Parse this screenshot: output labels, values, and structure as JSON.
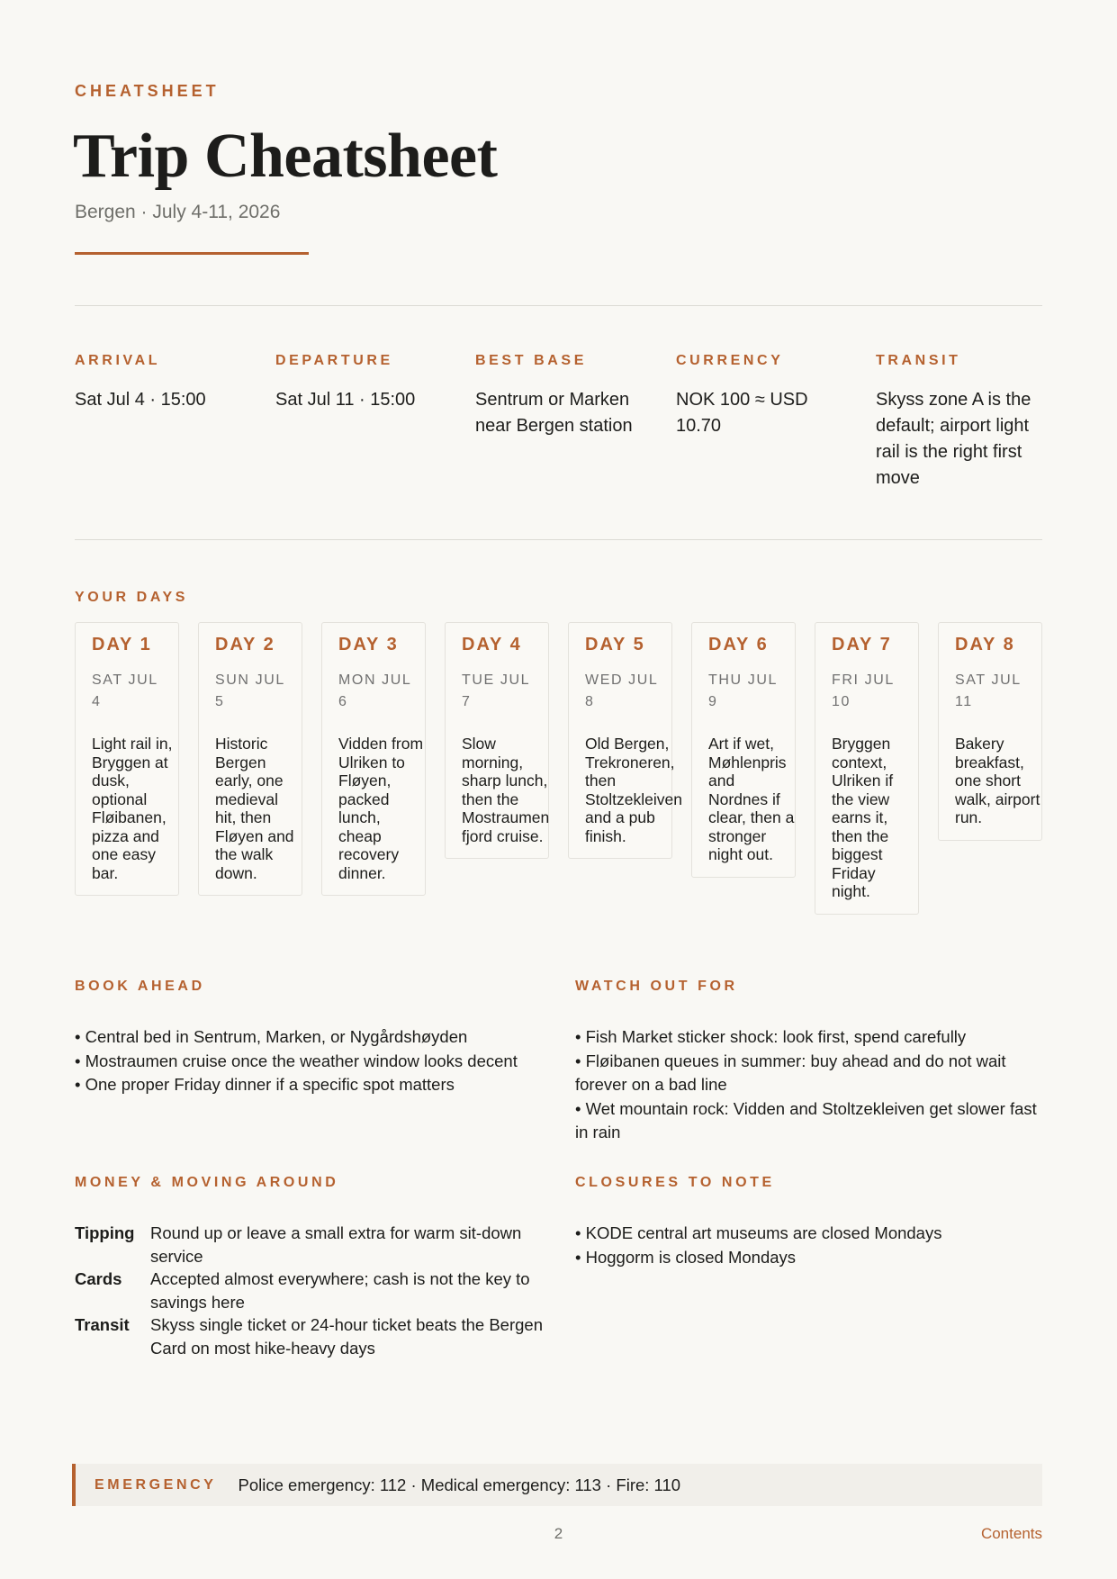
{
  "header": {
    "eyebrow": "CHEATSHEET",
    "title": "Trip Cheatsheet",
    "subtitle": "Bergen · July 4-11, 2026"
  },
  "info": [
    {
      "label": "ARRIVAL",
      "value": "Sat Jul 4 · 15:00"
    },
    {
      "label": "DEPARTURE",
      "value": "Sat Jul 11 · 15:00"
    },
    {
      "label": "BEST BASE",
      "value": "Sentrum or Marken near Bergen station"
    },
    {
      "label": "CURRENCY",
      "value": "NOK 100 ≈ USD 10.70"
    },
    {
      "label": "TRANSIT",
      "value": "Skyss zone A is the default; airport light rail is the right first move"
    }
  ],
  "days": {
    "label": "YOUR DAYS",
    "items": [
      {
        "day": "DAY 1",
        "date": "SAT JUL 4",
        "text": "Light rail in, Bryggen at dusk, optional Fløibanen, pizza and one easy bar."
      },
      {
        "day": "DAY 2",
        "date": "SUN JUL 5",
        "text": "Historic Bergen early, one medieval hit, then Fløyen and the walk down."
      },
      {
        "day": "DAY 3",
        "date": "MON JUL 6",
        "text": "Vidden from Ulriken to Fløyen, packed lunch, cheap recovery dinner."
      },
      {
        "day": "DAY 4",
        "date": "TUE JUL 7",
        "text": "Slow morning, sharp lunch, then the Mostraumen fjord cruise."
      },
      {
        "day": "DAY 5",
        "date": "WED JUL 8",
        "text": "Old Bergen, Trekroneren, then Stoltzekleiven and a pub finish."
      },
      {
        "day": "DAY 6",
        "date": "THU JUL 9",
        "text": "Art if wet, Møhlenpris and Nordnes if clear, then a stronger night out."
      },
      {
        "day": "DAY 7",
        "date": "FRI JUL 10",
        "text": "Bryggen context, Ulriken if the view earns it, then the biggest Friday night."
      },
      {
        "day": "DAY 8",
        "date": "SAT JUL 11",
        "text": "Bakery breakfast, one short walk, airport run."
      }
    ]
  },
  "book_ahead": {
    "label": "BOOK AHEAD",
    "items": [
      "• Central bed in Sentrum, Marken, or Nygårdshøyden",
      "• Mostraumen cruise once the weather window looks decent",
      "• One proper Friday dinner if a specific spot matters"
    ]
  },
  "watch_out": {
    "label": "WATCH OUT FOR",
    "items": [
      "• Fish Market sticker shock: look first, spend carefully",
      "• Fløibanen queues in summer: buy ahead and do not wait forever on a bad line",
      "• Wet mountain rock: Vidden and Stoltzekleiven get slower fast in rain"
    ]
  },
  "money": {
    "label": "MONEY & MOVING AROUND",
    "rows": [
      {
        "key": "Tipping",
        "value": "Round up or leave a small extra for warm sit-down service"
      },
      {
        "key": "Cards",
        "value": "Accepted almost everywhere; cash is not the key to savings here"
      },
      {
        "key": "Transit",
        "value": "Skyss single ticket or 24-hour ticket beats the Bergen Card on most hike-heavy days"
      }
    ]
  },
  "closures": {
    "label": "CLOSURES TO NOTE",
    "items": [
      "• KODE central art museums are closed Mondays",
      "• Hoggorm is closed Mondays"
    ]
  },
  "emergency": {
    "label": "EMERGENCY",
    "value": "Police emergency: 112 · Medical emergency: 113 · Fire: 110"
  },
  "footer": {
    "page": "2",
    "contents": "Contents"
  },
  "colors": {
    "accent": "#b5612f",
    "background": "#f9f8f4"
  }
}
